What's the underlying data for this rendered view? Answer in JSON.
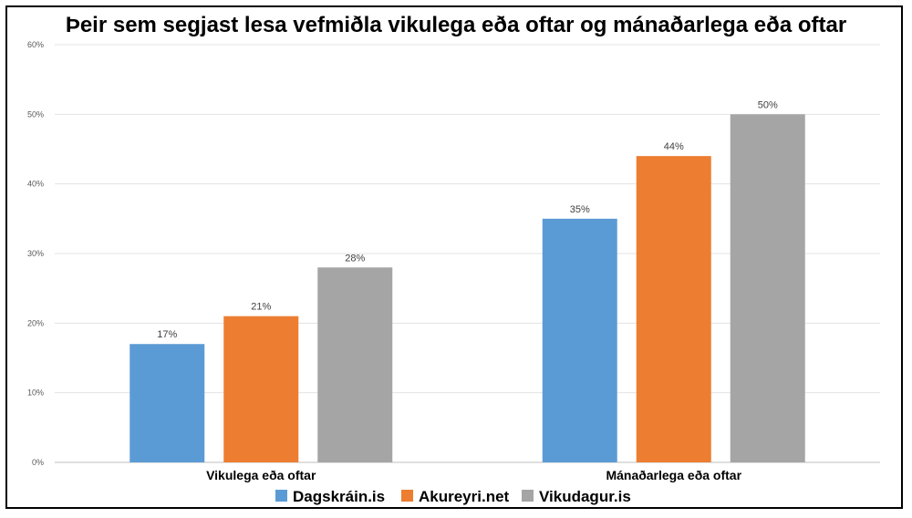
{
  "chart_data": {
    "type": "bar",
    "title": "Þeir sem segjast lesa vefmiðla vikulega eða oftar og mánaðarlega eða oftar",
    "categories": [
      "Vikulega eða oftar",
      "Mánaðarlega eða oftar"
    ],
    "series": [
      {
        "name": "Dagskráin.is",
        "values": [
          17,
          35
        ],
        "labels": [
          "17%",
          "35%"
        ],
        "color": "#5B9BD5"
      },
      {
        "name": "Akureyri.net",
        "values": [
          21,
          44
        ],
        "labels": [
          "21%",
          "44%"
        ],
        "color": "#ED7D31"
      },
      {
        "name": "Vikudagur.is",
        "values": [
          28,
          50
        ],
        "labels": [
          "28%",
          "50%"
        ],
        "color": "#A5A5A5"
      }
    ],
    "yticks": [
      "0%",
      "10%",
      "20%",
      "30%",
      "40%",
      "50%",
      "60%"
    ],
    "ylim": [
      0,
      60
    ],
    "grid": true,
    "legend": "bottom"
  }
}
